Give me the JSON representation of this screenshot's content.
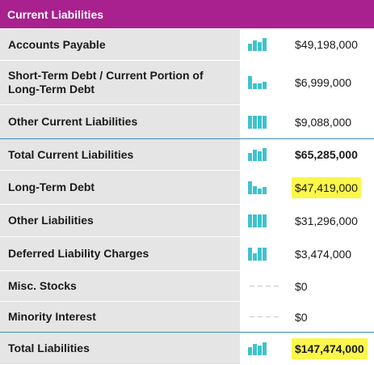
{
  "section_title": "Current Liabilities",
  "colors": {
    "header": "#a8218e",
    "bar": "#3fc2cc",
    "highlight": "#fbf64a",
    "separator": "#3a8fb7"
  },
  "rows": [
    {
      "label": "Accounts Payable",
      "value": "$49,198,000",
      "bars": [
        0.55,
        0.8,
        0.7,
        1.0
      ],
      "bold": false,
      "highlight": false,
      "sep": false,
      "height": 39
    },
    {
      "label": "Short-Term Debt / Current Portion of Long-Term Debt",
      "value": "$6,999,000",
      "bars": [
        1.0,
        0.45,
        0.45,
        0.55
      ],
      "bold": false,
      "highlight": false,
      "sep": false,
      "height": 55
    },
    {
      "label": "Other Current Liabilities",
      "value": "$9,088,000",
      "bars": [
        1.0,
        1.0,
        1.0,
        1.0
      ],
      "bold": false,
      "highlight": false,
      "sep": false,
      "height": 42
    },
    {
      "label": "Total Current Liabilities",
      "value": "$65,285,000",
      "bars": [
        0.6,
        0.85,
        0.75,
        1.0
      ],
      "bold": true,
      "highlight": false,
      "sep": true,
      "height": 39
    },
    {
      "label": "Long-Term Debt",
      "value": "$47,419,000",
      "bars": [
        1.0,
        0.65,
        0.45,
        0.55
      ],
      "bold": false,
      "highlight": true,
      "sep": false,
      "height": 42
    },
    {
      "label": "Other Liabilities",
      "value": "$31,296,000",
      "bars": [
        1.0,
        1.0,
        1.0,
        1.0
      ],
      "bold": false,
      "highlight": false,
      "sep": false,
      "height": 40
    },
    {
      "label": "Deferred Liability Charges",
      "value": "$3,474,000",
      "bars": [
        1.0,
        0.55,
        1.0,
        1.0
      ],
      "bold": false,
      "highlight": false,
      "sep": false,
      "height": 42
    },
    {
      "label": "Misc. Stocks",
      "value": "$0",
      "bars": [],
      "bold": false,
      "highlight": false,
      "sep": false,
      "height": 38
    },
    {
      "label": "Minority Interest",
      "value": "$0",
      "bars": [],
      "bold": false,
      "highlight": false,
      "sep": false,
      "height": 38
    },
    {
      "label": "Total Liabilities",
      "value": "$147,474,000",
      "bars": [
        0.6,
        0.85,
        0.75,
        1.0
      ],
      "bold": true,
      "highlight": true,
      "sep": true,
      "height": 40
    }
  ]
}
